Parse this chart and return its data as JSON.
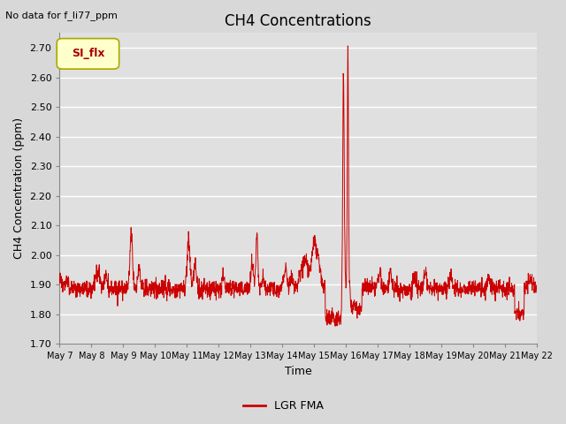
{
  "title": "CH4 Concentrations",
  "xlabel": "Time",
  "ylabel": "CH4 Concentration (ppm)",
  "top_left_text": "No data for f_li77_ppm",
  "tab_label": "SI_flx",
  "legend_label": "LGR FMA",
  "line_color": "#cc0000",
  "legend_line_color": "#cc0000",
  "ylim": [
    1.7,
    2.75
  ],
  "yticks": [
    1.7,
    1.8,
    1.9,
    2.0,
    2.1,
    2.2,
    2.3,
    2.4,
    2.5,
    2.6,
    2.7
  ],
  "xtick_labels": [
    "May 7",
    "May 8",
    "May 9",
    "May 10",
    "May 11",
    "May 12",
    "May 13",
    "May 14",
    "May 15",
    "May 16",
    "May 17",
    "May 18",
    "May 19",
    "May 20",
    "May 21",
    "May 22"
  ],
  "background_color": "#d8d8d8",
  "plot_bg_color": "#e0e0e0",
  "tab_bg": "#ffffcc",
  "tab_border": "#aaa800",
  "tab_text_color": "#aa0000",
  "grid_color": "#ffffff",
  "title_fontsize": 12,
  "label_fontsize": 9,
  "tick_fontsize": 8
}
